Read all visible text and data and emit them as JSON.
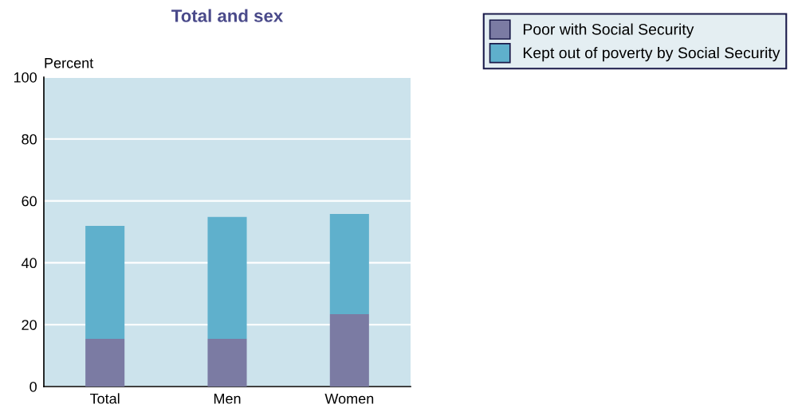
{
  "chart_data": {
    "type": "bar",
    "title": "Total and sex",
    "ylabel": "Percent",
    "categories": [
      "Total",
      "Men",
      "Women"
    ],
    "stacked": true,
    "series": [
      {
        "name": "Poor with Social Security",
        "color": "#7b7ba3",
        "values": [
          15.4,
          15.4,
          23.4
        ]
      },
      {
        "name": "Kept out of poverty by Social Security",
        "color": "#5fb0cc",
        "values": [
          36.5,
          39.4,
          32.4
        ]
      }
    ],
    "ylim": [
      0,
      100
    ],
    "yticks": [
      0,
      20,
      40,
      60,
      80,
      100
    ],
    "grid": "y",
    "legend": "top right"
  }
}
